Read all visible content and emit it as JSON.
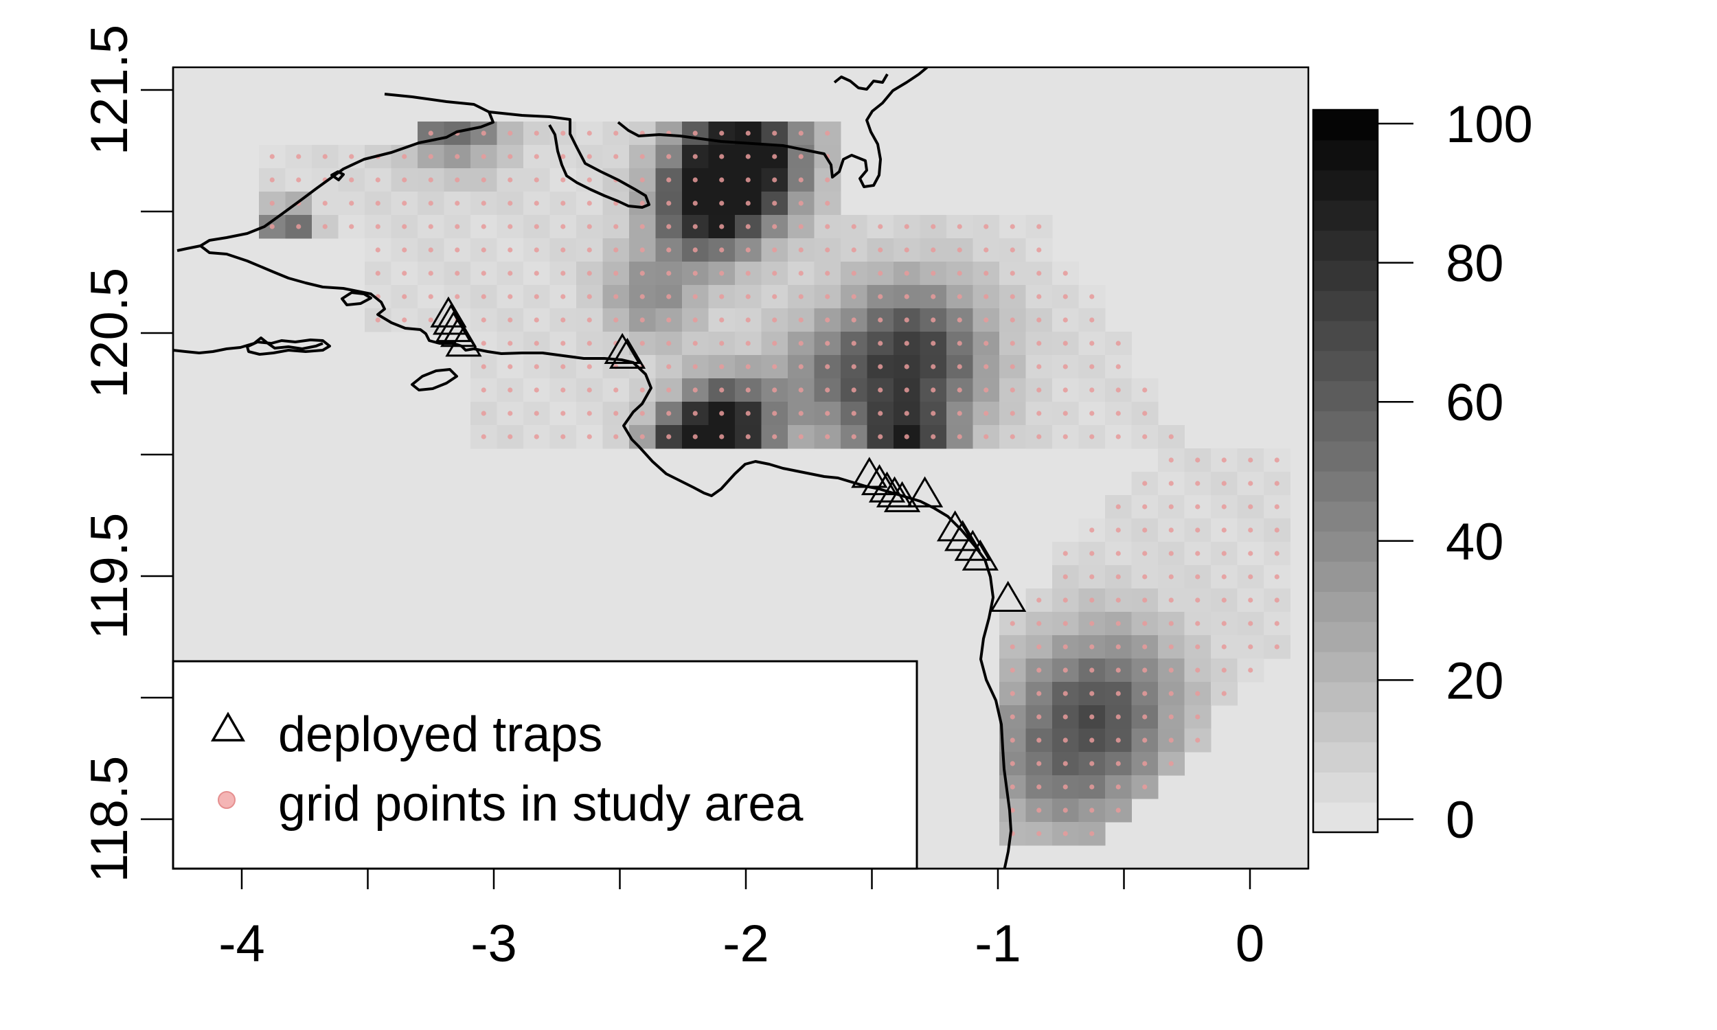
{
  "x_axis": {
    "range": [
      -4.3,
      0.23
    ],
    "ticks": [
      {
        "value": -4,
        "label": "-4"
      },
      {
        "value": -3,
        "label": "-3"
      },
      {
        "value": -2,
        "label": "-2"
      },
      {
        "value": -1,
        "label": "-1"
      },
      {
        "value": 0,
        "label": "0"
      }
    ],
    "minor_ticks": [
      -3.5,
      -2.5,
      -1.5,
      -0.5
    ]
  },
  "y_axis": {
    "range": [
      118.3,
      121.6
    ],
    "ticks": [
      {
        "value": 118.5,
        "label": "118.5"
      },
      {
        "value": 119.5,
        "label": "119.5"
      },
      {
        "value": 120.5,
        "label": "120.5"
      },
      {
        "value": 121.5,
        "label": "121.5"
      }
    ],
    "minor_ticks": [
      119.0,
      120.0,
      121.0
    ]
  },
  "colorbar": {
    "min": 0,
    "max": 100,
    "ticks": [
      {
        "value": 0,
        "label": "0"
      },
      {
        "value": 20,
        "label": "20"
      },
      {
        "value": 40,
        "label": "40"
      },
      {
        "value": 60,
        "label": "60"
      },
      {
        "value": 80,
        "label": "80"
      },
      {
        "value": 100,
        "label": "100"
      }
    ]
  },
  "legend": {
    "items": [
      {
        "symbol": "triangle",
        "label": "deployed traps"
      },
      {
        "symbol": "point",
        "label": "grid points in study area"
      }
    ]
  },
  "colors": {
    "background": "#e3e3e3",
    "grid_point": "#e89a9a",
    "coast": "#000000"
  },
  "traps": [
    [
      -3.18,
      120.58
    ],
    [
      -3.17,
      120.55
    ],
    [
      -3.16,
      120.52
    ],
    [
      -3.14,
      120.5
    ],
    [
      -3.12,
      120.46
    ],
    [
      -2.49,
      120.43
    ],
    [
      -2.47,
      120.41
    ],
    [
      -1.51,
      119.92
    ],
    [
      -1.47,
      119.89
    ],
    [
      -1.44,
      119.86
    ],
    [
      -1.41,
      119.84
    ],
    [
      -1.38,
      119.82
    ],
    [
      -1.29,
      119.84
    ],
    [
      -1.17,
      119.7
    ],
    [
      -1.14,
      119.66
    ],
    [
      -1.1,
      119.62
    ],
    [
      -1.07,
      119.58
    ],
    [
      -0.96,
      119.41
    ]
  ]
}
